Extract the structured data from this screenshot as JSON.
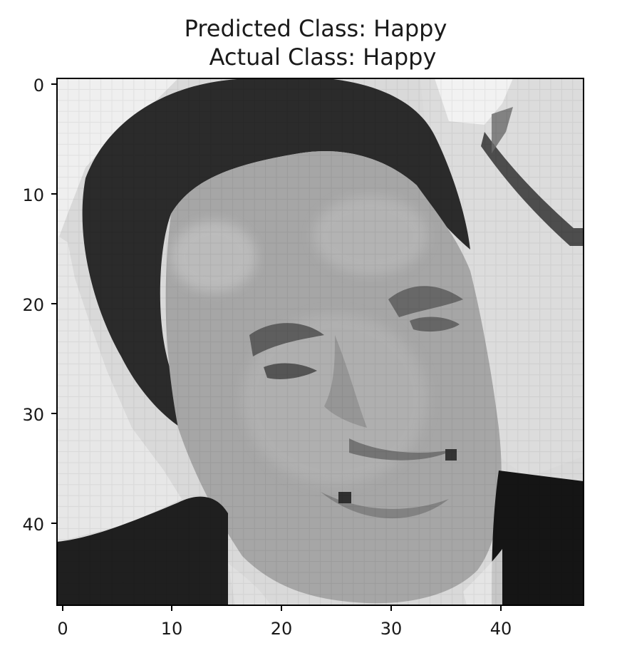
{
  "figure": {
    "title_line_1": "Predicted Class: Happy",
    "title_line_2": "Actual Class: Happy"
  },
  "image": {
    "description": "48x48 grayscale face image (pixelated)",
    "colormap": "gray"
  },
  "chart_data": {
    "type": "heatmap",
    "title": "Predicted Class: Happy\nActual Class: Happy",
    "xlabel": "",
    "ylabel": "",
    "xlim": [
      -0.5,
      47.5
    ],
    "ylim": [
      47.5,
      -0.5
    ],
    "x_ticks": [
      0,
      10,
      20,
      30,
      40
    ],
    "y_ticks": [
      0,
      10,
      20,
      30,
      40
    ],
    "x_tick_labels": [
      "0",
      "10",
      "20",
      "30",
      "40"
    ],
    "y_tick_labels": [
      "0",
      "10",
      "20",
      "30",
      "40"
    ],
    "grid": false
  }
}
